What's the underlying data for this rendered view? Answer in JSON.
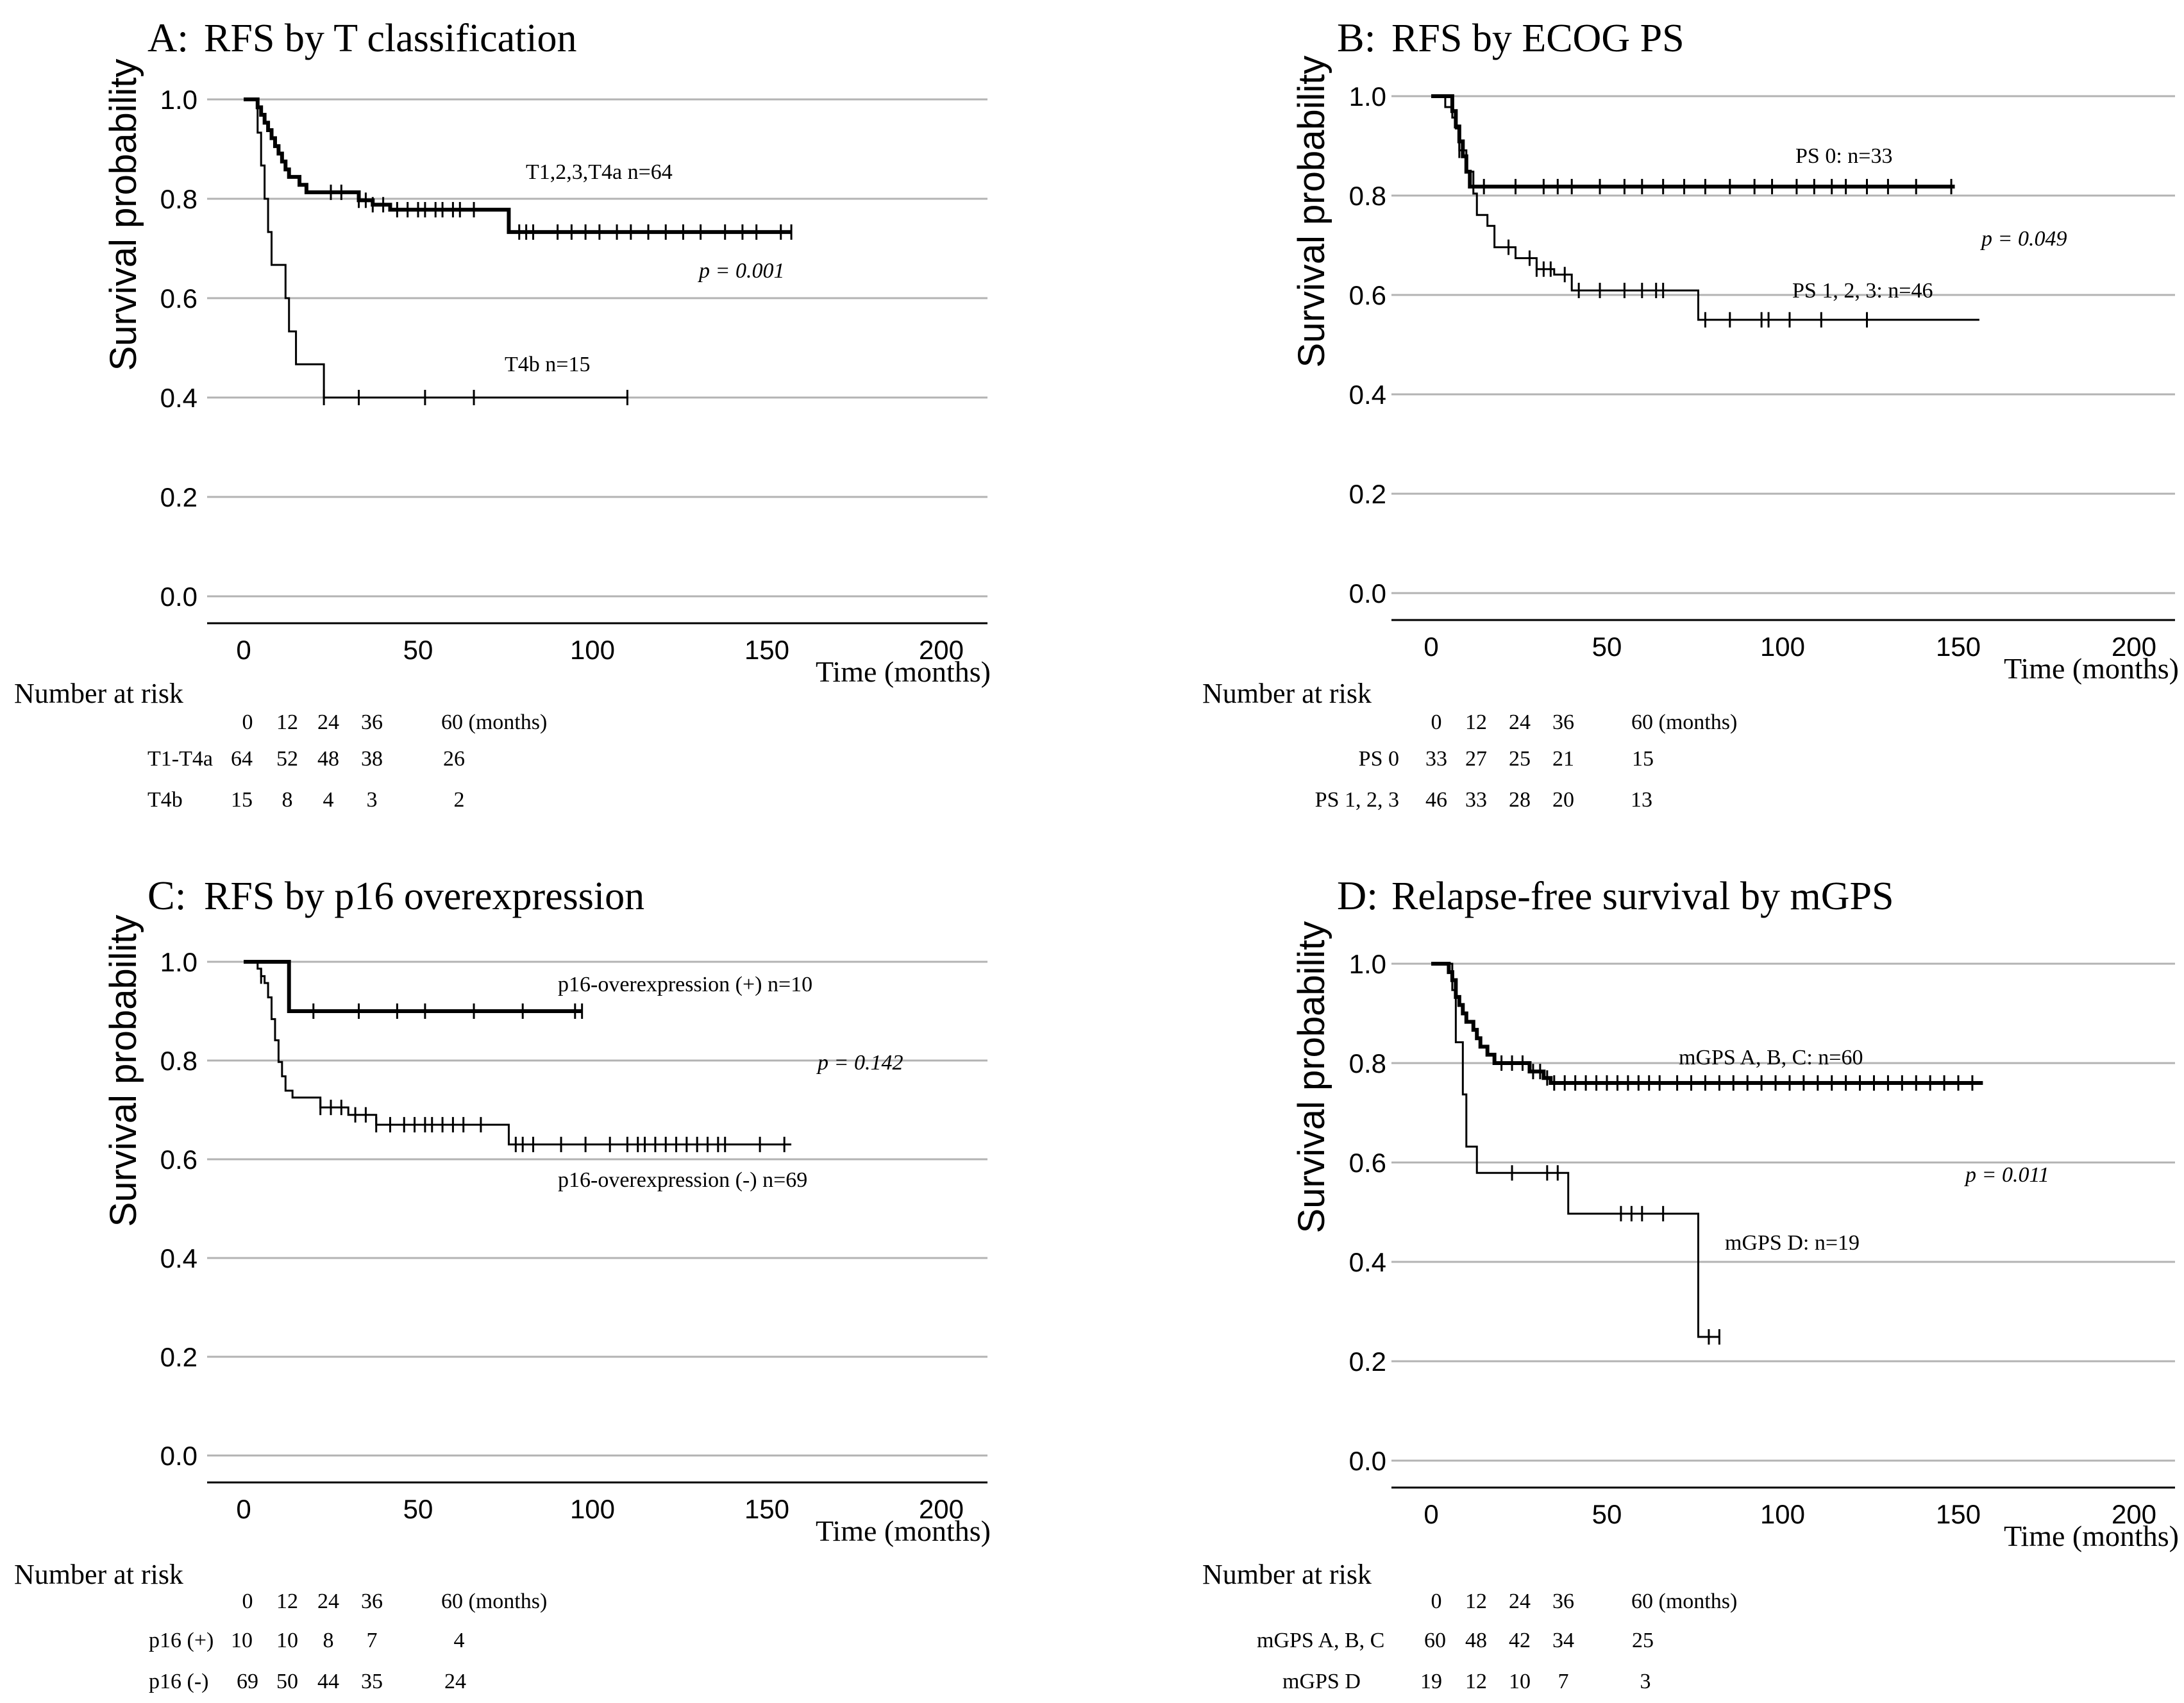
{
  "chart_data": [
    {
      "type": "line",
      "panel_letter": "A:",
      "title": "RFS by T classification",
      "xlabel": "Time (months)",
      "ylabel": "Survival probability",
      "xlim": [
        0,
        200
      ],
      "ylim": [
        0,
        1
      ],
      "xticks": [
        "0",
        "50",
        "100",
        "150",
        "200"
      ],
      "yticks": [
        "0.0",
        "0.2",
        "0.4",
        "0.6",
        "0.8",
        "1.0"
      ],
      "grid": true,
      "p_value": "p = 0.001",
      "series": [
        {
          "name": "T1,2,3,T4a n=64",
          "bold": true,
          "steps": [
            [
              0,
              1
            ],
            [
              4,
              0.984
            ],
            [
              5,
              0.969
            ],
            [
              6,
              0.953
            ],
            [
              7,
              0.938
            ],
            [
              8,
              0.922
            ],
            [
              9,
              0.906
            ],
            [
              10,
              0.891
            ],
            [
              11,
              0.875
            ],
            [
              12,
              0.859
            ],
            [
              13,
              0.844
            ],
            [
              16,
              0.828
            ],
            [
              18,
              0.813
            ],
            [
              33,
              0.797
            ],
            [
              37,
              0.788
            ],
            [
              42,
              0.778
            ],
            [
              76,
              0.733
            ]
          ],
          "censor": [
            25,
            28,
            33,
            35,
            37,
            40,
            44,
            47,
            50,
            52,
            55,
            57,
            60,
            62,
            66,
            79,
            81,
            83,
            90,
            94,
            98,
            102,
            107,
            111,
            116,
            121,
            126,
            131,
            138,
            143,
            147,
            154,
            157
          ],
          "end": 157
        },
        {
          "name": "T4b n=15",
          "bold": false,
          "steps": [
            [
              0,
              1
            ],
            [
              4,
              0.933
            ],
            [
              5,
              0.867
            ],
            [
              6,
              0.8
            ],
            [
              7,
              0.733
            ],
            [
              8,
              0.667
            ],
            [
              12,
              0.6
            ],
            [
              13,
              0.533
            ],
            [
              15,
              0.467
            ],
            [
              23,
              0.4
            ]
          ],
          "censor": [
            23,
            33,
            52,
            66,
            110
          ],
          "end": 110
        }
      ],
      "risk_table": {
        "header": "Number at risk",
        "times": [
          "0",
          "12",
          "24",
          "36",
          "60 (months)"
        ],
        "rows": [
          {
            "label": "T1-T4a",
            "values": [
              "64",
              "52",
              "48",
              "38",
              "26"
            ]
          },
          {
            "label": "T4b",
            "values": [
              "15",
              "8",
              "4",
              "3",
              "2"
            ]
          }
        ]
      }
    },
    {
      "type": "line",
      "panel_letter": "B:",
      "title": "RFS by ECOG PS",
      "xlabel": "Time (months)",
      "ylabel": "Survival probability",
      "xlim": [
        0,
        200
      ],
      "ylim": [
        0,
        1
      ],
      "xticks": [
        "0",
        "50",
        "100",
        "150",
        "200"
      ],
      "yticks": [
        "0.0",
        "0.2",
        "0.4",
        "0.6",
        "0.8",
        "1.0"
      ],
      "grid": true,
      "p_value": "p = 0.049",
      "series": [
        {
          "name": "PS 0: n=33",
          "bold": true,
          "steps": [
            [
              0,
              1
            ],
            [
              6,
              0.97
            ],
            [
              7,
              0.939
            ],
            [
              8,
              0.909
            ],
            [
              9,
              0.879
            ],
            [
              10,
              0.848
            ],
            [
              11,
              0.818
            ]
          ],
          "censor": [
            15,
            24,
            32,
            36,
            40,
            48,
            55,
            60,
            66,
            72,
            78,
            85,
            92,
            97,
            104,
            109,
            114,
            118,
            124,
            130,
            138,
            148
          ],
          "end": 149
        },
        {
          "name": "PS 1, 2, 3: n=46",
          "bold": false,
          "steps": [
            [
              0,
              1
            ],
            [
              4,
              0.978
            ],
            [
              6,
              0.957
            ],
            [
              7,
              0.935
            ],
            [
              8,
              0.891
            ],
            [
              10,
              0.848
            ],
            [
              12,
              0.804
            ],
            [
              13,
              0.761
            ],
            [
              16,
              0.739
            ],
            [
              18,
              0.696
            ],
            [
              24,
              0.674
            ],
            [
              30,
              0.652
            ],
            [
              35,
              0.641
            ],
            [
              40,
              0.609
            ],
            [
              76,
              0.55
            ]
          ],
          "censor": [
            8,
            22,
            28,
            30,
            32,
            34,
            38,
            42,
            48,
            55,
            60,
            64,
            66,
            78,
            85,
            94,
            96,
            102,
            111,
            124
          ],
          "end": 156
        }
      ],
      "risk_table": {
        "header": "Number at risk",
        "times": [
          "0",
          "12",
          "24",
          "36",
          "60 (months)"
        ],
        "rows": [
          {
            "label": "PS 0",
            "values": [
              "33",
              "27",
              "25",
              "21",
              "15"
            ]
          },
          {
            "label": "PS 1, 2, 3",
            "values": [
              "46",
              "33",
              "28",
              "20",
              "13"
            ]
          }
        ]
      }
    },
    {
      "type": "line",
      "panel_letter": "C:",
      "title": "RFS by p16 overexpression",
      "xlabel": "Time (months)",
      "ylabel": "Survival probability",
      "xlim": [
        0,
        200
      ],
      "ylim": [
        0,
        1
      ],
      "xticks": [
        "0",
        "50",
        "100",
        "150",
        "200"
      ],
      "yticks": [
        "0.0",
        "0.2",
        "0.4",
        "0.6",
        "0.8",
        "1.0"
      ],
      "grid": true,
      "p_value": "p = 0.142",
      "series": [
        {
          "name": "p16-overexpression (+) n=10",
          "bold": true,
          "steps": [
            [
              0,
              1
            ],
            [
              13,
              0.9
            ]
          ],
          "censor": [
            20,
            33,
            44,
            52,
            66,
            80,
            95,
            97
          ],
          "end": 97
        },
        {
          "name": "p16-overexpression (-) n=69",
          "bold": false,
          "steps": [
            [
              0,
              1
            ],
            [
              4,
              0.986
            ],
            [
              5,
              0.971
            ],
            [
              6,
              0.957
            ],
            [
              7,
              0.928
            ],
            [
              8,
              0.884
            ],
            [
              9,
              0.841
            ],
            [
              10,
              0.797
            ],
            [
              11,
              0.768
            ],
            [
              12,
              0.739
            ],
            [
              14,
              0.725
            ],
            [
              22,
              0.705
            ],
            [
              30,
              0.69
            ],
            [
              38,
              0.67
            ],
            [
              76,
              0.63
            ]
          ],
          "censor": [
            5,
            22,
            25,
            28,
            32,
            35,
            38,
            42,
            46,
            49,
            52,
            54,
            57,
            60,
            63,
            68,
            78,
            80,
            83,
            91,
            98,
            105,
            110,
            113,
            115,
            118,
            121,
            124,
            127,
            130,
            133,
            136,
            138,
            148,
            155
          ],
          "end": 157
        }
      ],
      "risk_table": {
        "header": "Number at risk",
        "times": [
          "0",
          "12",
          "24",
          "36",
          "60 (months)"
        ],
        "rows": [
          {
            "label": "p16 (+)",
            "values": [
              "10",
              "10",
              "8",
              "7",
              "4"
            ]
          },
          {
            "label": "p16 (-)",
            "values": [
              "69",
              "50",
              "44",
              "35",
              "24"
            ]
          }
        ]
      }
    },
    {
      "type": "line",
      "panel_letter": "D:",
      "title": "Relapse-free survival by mGPS",
      "xlabel": "Time (months)",
      "ylabel": "Survival probability",
      "xlim": [
        0,
        200
      ],
      "ylim": [
        0,
        1
      ],
      "xticks": [
        "0",
        "50",
        "100",
        "150",
        "200"
      ],
      "yticks": [
        "0.0",
        "0.2",
        "0.4",
        "0.6",
        "0.8",
        "1.0"
      ],
      "grid": true,
      "p_value": "p = 0.011",
      "series": [
        {
          "name": "mGPS A, B, C: n=60",
          "bold": true,
          "steps": [
            [
              0,
              1
            ],
            [
              5,
              0.983
            ],
            [
              6,
              0.967
            ],
            [
              7,
              0.933
            ],
            [
              8,
              0.917
            ],
            [
              9,
              0.9
            ],
            [
              10,
              0.883
            ],
            [
              12,
              0.867
            ],
            [
              13,
              0.85
            ],
            [
              14,
              0.833
            ],
            [
              16,
              0.817
            ],
            [
              18,
              0.8
            ],
            [
              28,
              0.783
            ],
            [
              32,
              0.77
            ],
            [
              34,
              0.76
            ]
          ],
          "censor": [
            20,
            23,
            26,
            29,
            31,
            33,
            35,
            38,
            41,
            44,
            47,
            50,
            53,
            56,
            59,
            62,
            65,
            70,
            74,
            78,
            82,
            86,
            90,
            94,
            98,
            102,
            106,
            110,
            114,
            118,
            122,
            126,
            130,
            134,
            138,
            142,
            146,
            150,
            154
          ],
          "end": 157
        },
        {
          "name": "mGPS D: n=19",
          "bold": false,
          "steps": [
            [
              0,
              1
            ],
            [
              6,
              0.947
            ],
            [
              7,
              0.842
            ],
            [
              9,
              0.737
            ],
            [
              10,
              0.632
            ],
            [
              13,
              0.579
            ],
            [
              39,
              0.497
            ],
            [
              76,
              0.249
            ]
          ],
          "censor": [
            23,
            33,
            36,
            54,
            57,
            60,
            66,
            79,
            82
          ],
          "end": 82
        }
      ],
      "risk_table": {
        "header": "Number at risk",
        "times": [
          "0",
          "12",
          "24",
          "36",
          "60 (months)"
        ],
        "rows": [
          {
            "label": "mGPS A, B, C",
            "values": [
              "60",
              "48",
              "42",
              "34",
              "25"
            ]
          },
          {
            "label": "mGPS D",
            "values": [
              "19",
              "12",
              "10",
              "7",
              "3"
            ]
          }
        ]
      }
    }
  ]
}
